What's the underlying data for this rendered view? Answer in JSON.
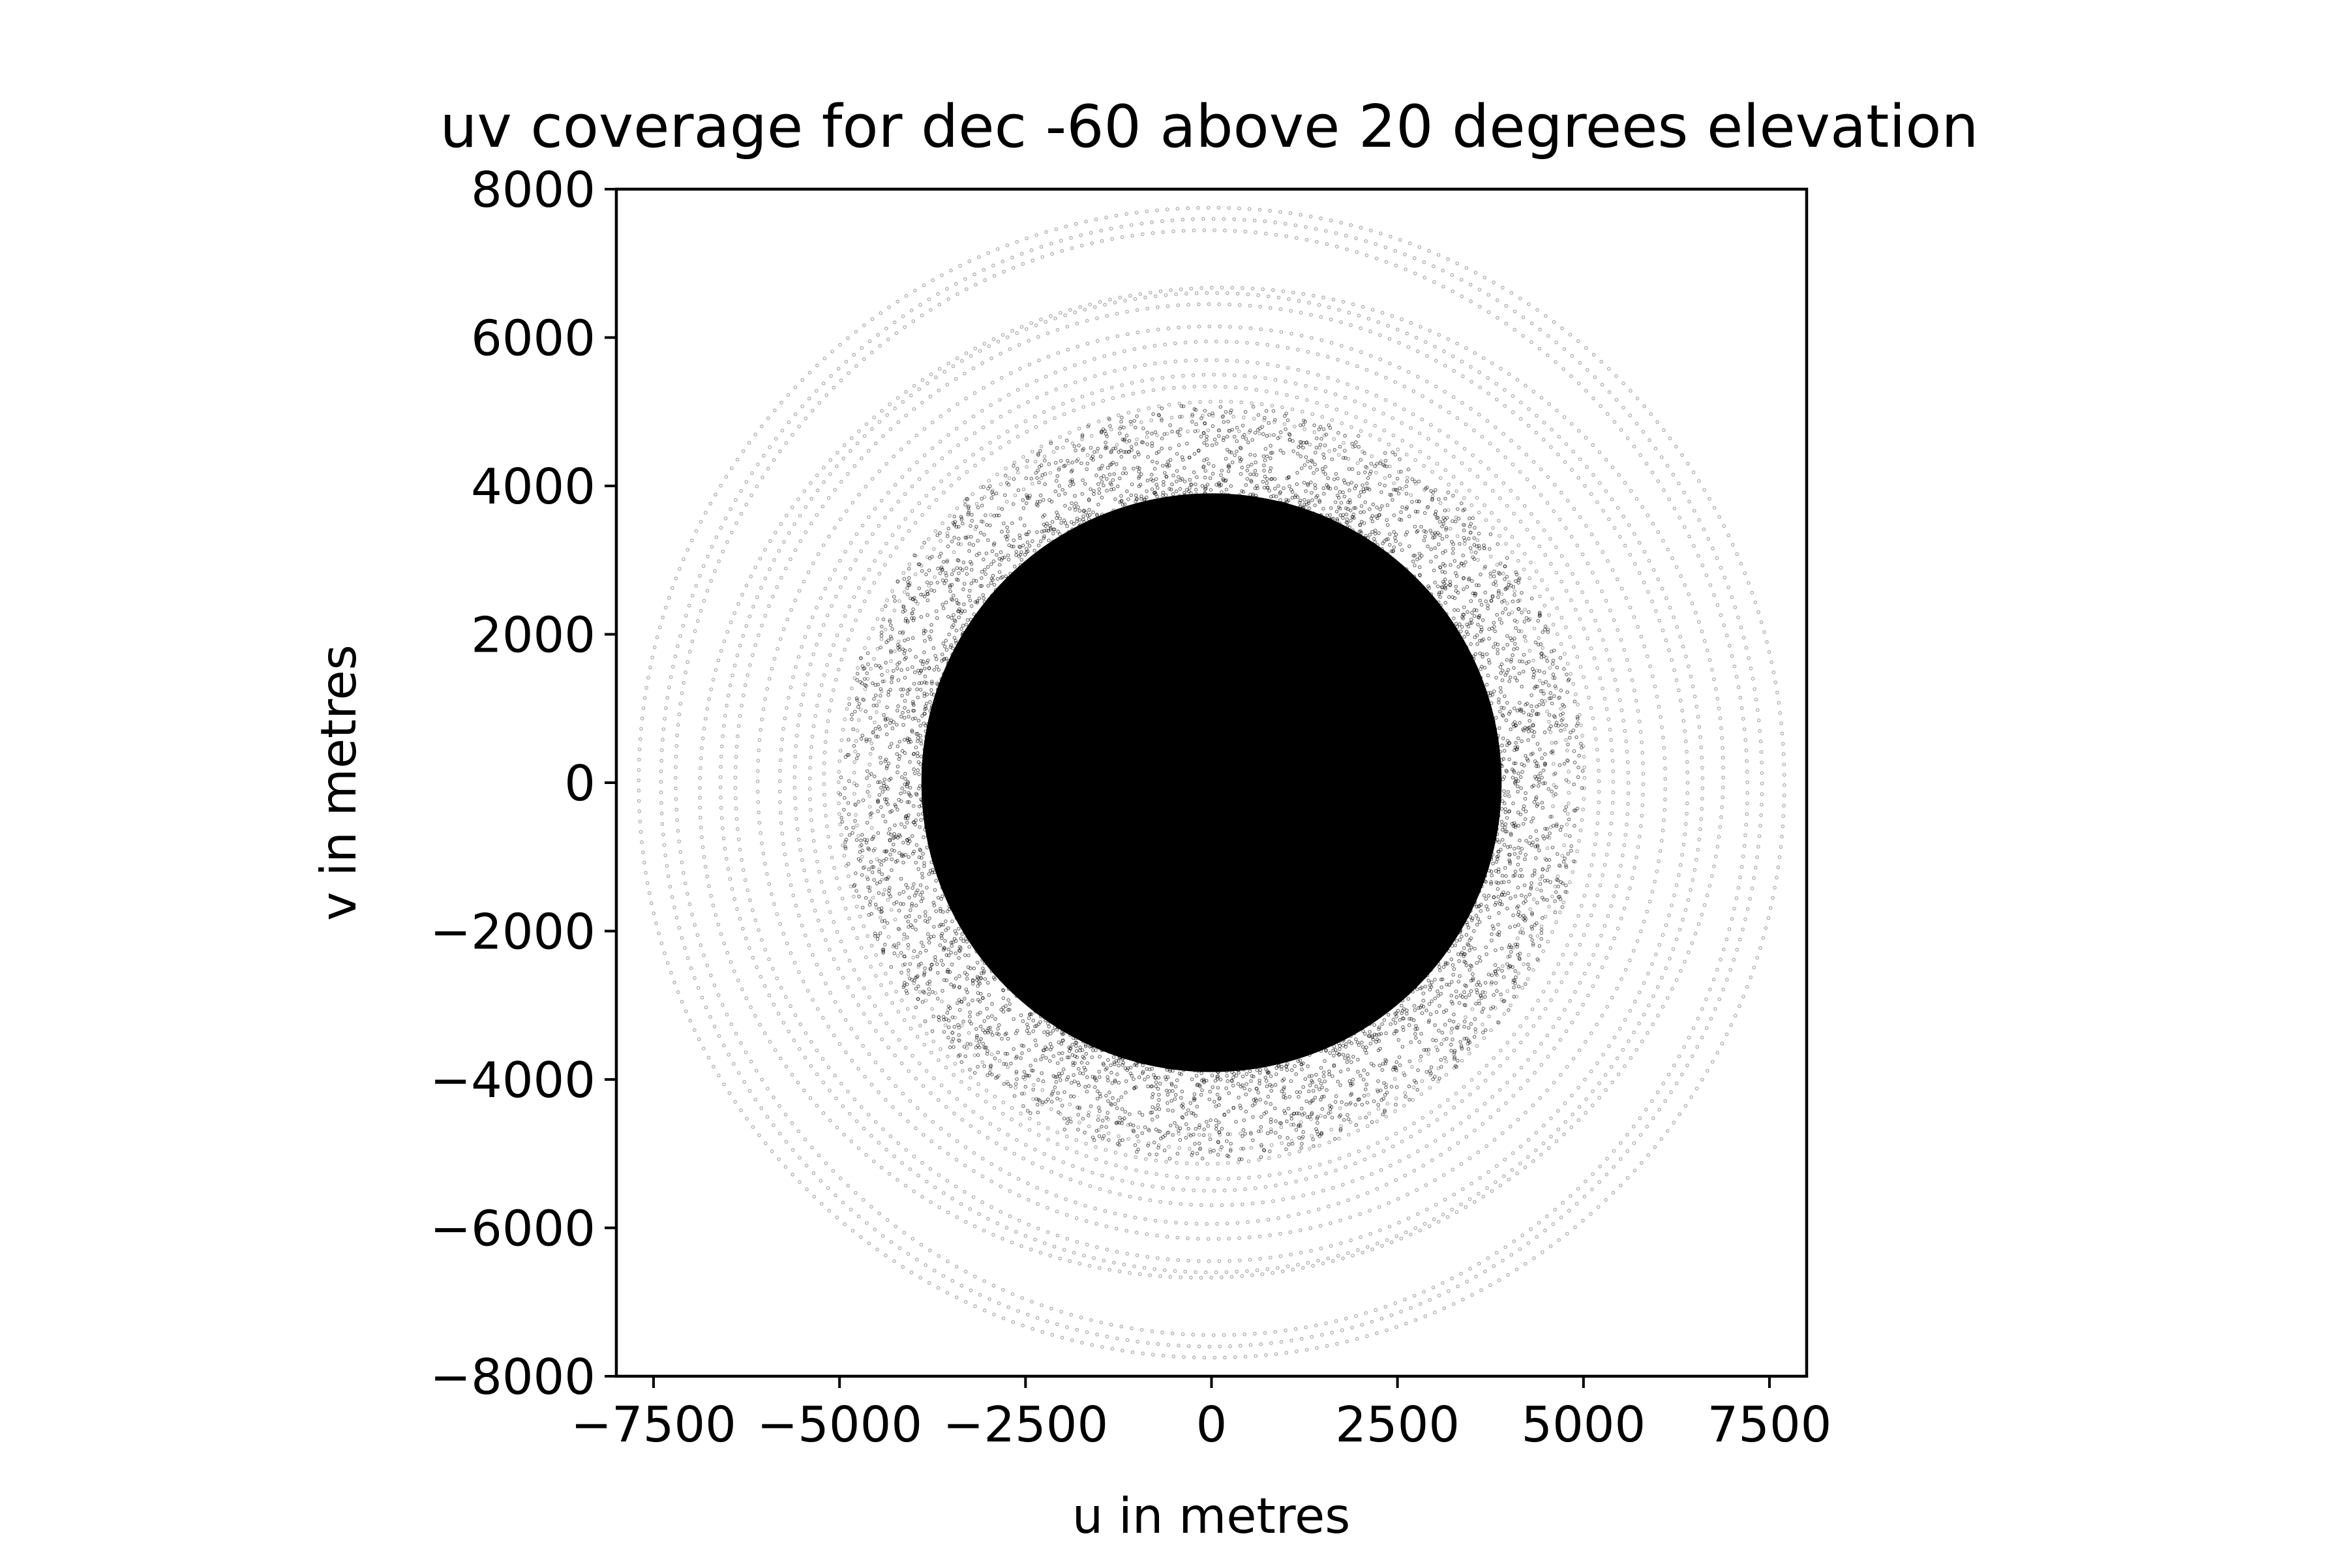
{
  "chart_data": {
    "type": "scatter",
    "title": "uv coverage for dec -60 above 20 degrees elevation",
    "xlabel": "u in metres",
    "ylabel": "v in metres",
    "xlim": [
      -8000,
      8000
    ],
    "ylim": [
      -8000,
      8000
    ],
    "xticks": [
      -7500,
      -5000,
      -2500,
      0,
      2500,
      5000,
      7500
    ],
    "xtick_labels": [
      "−7500",
      "−5000",
      "−2500",
      "0",
      "2500",
      "5000",
      "7500"
    ],
    "yticks": [
      -8000,
      -6000,
      -4000,
      -2000,
      0,
      2000,
      4000,
      6000,
      8000
    ],
    "ytick_labels": [
      "−8000",
      "−6000",
      "−4000",
      "−2000",
      "0",
      "2000",
      "4000",
      "6000",
      "8000"
    ],
    "grid": false,
    "legend": "none",
    "marker_color": "#000000",
    "description_of_points": {
      "dense_core_radius": 3800,
      "outer_tracks_max_radius": 7700,
      "symmetry": "point-symmetric about origin (u,v) and (-u,-v)"
    },
    "series": [
      {
        "tracks": [
          {
            "a": 7700,
            "b": 7750,
            "rot": 0.05
          },
          {
            "a": 7400,
            "b": 7600,
            "rot": -0.04
          },
          {
            "a": 7200,
            "b": 7450,
            "rot": 0.12
          },
          {
            "a": 6900,
            "b": 6650,
            "rot": 0.3
          },
          {
            "a": 6600,
            "b": 6600,
            "rot": -0.2
          },
          {
            "a": 6400,
            "b": 6450,
            "rot": 0.0
          },
          {
            "a": 6100,
            "b": 6150,
            "rot": 0.1
          },
          {
            "a": 5800,
            "b": 5950,
            "rot": -0.15
          },
          {
            "a": 5600,
            "b": 5700,
            "rot": 0.2
          },
          {
            "a": 5400,
            "b": 5500,
            "rot": -0.05
          },
          {
            "a": 5200,
            "b": 5350,
            "rot": 0.25
          },
          {
            "a": 5000,
            "b": 5150,
            "rot": -0.3
          },
          {
            "a": 4800,
            "b": 4950,
            "rot": 0.15
          },
          {
            "a": 4600,
            "b": 4750,
            "rot": -0.1
          }
        ]
      }
    ]
  }
}
